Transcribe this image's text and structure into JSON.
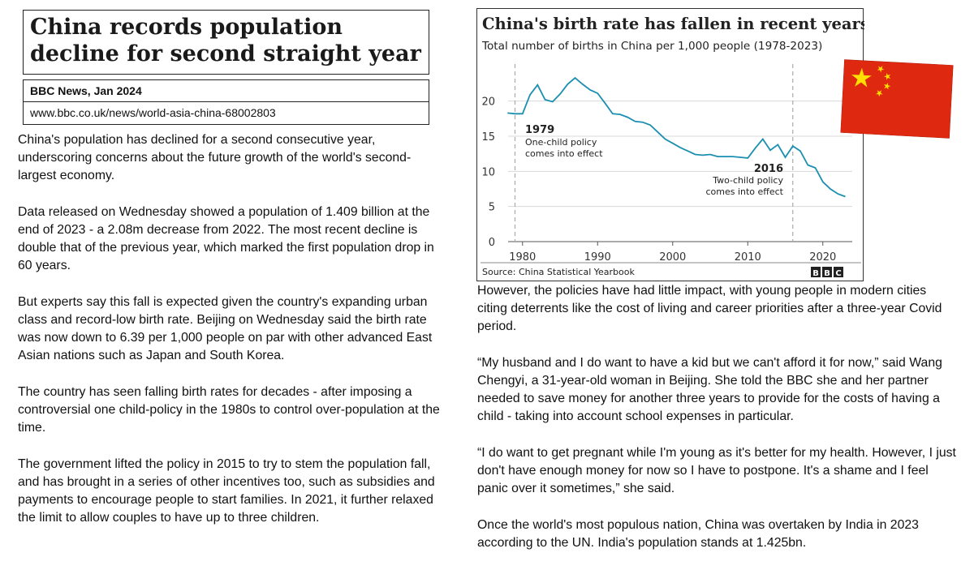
{
  "article": {
    "headline": "China records population decline for second straight year",
    "source": "BBC News, Jan 2024",
    "url": "www.bbc.co.uk/news/world-asia-china-68002803",
    "left_paragraphs": [
      "China's population has declined for a second consecutive year, underscoring concerns about the future growth of the world's second-largest economy.",
      "Data released on Wednesday showed a population of 1.409 billion at the end of 2023 - a 2.08m decrease from 2022. The most recent decline is double that of the previous year, which marked the first population drop in 60 years.",
      "But experts say this fall is expected given the country's expanding urban class and record-low birth rate. Beijing on Wednesday said the birth rate was now down to 6.39 per 1,000 people on par with other advanced East Asian nations such as Japan and South Korea.",
      "The country has seen falling birth rates for decades - after imposing a controversial one child-policy in the 1980s to control over-population at the time.",
      "The government lifted the policy in 2015 to try to stem the population fall, and has brought in a series of other incentives too, such as subsidies and payments to encourage people to start families. In 2021, it further relaxed the limit to allow couples to have up to three children."
    ],
    "right_paragraphs": [
      "However, the policies have had little impact, with young people in modern cities citing deterrents like the cost of living and career priorities after a three-year Covid period.",
      "“My husband and I do want to have a kid but we can't afford it for now,” said Wang Chengyi, a 31-year-old woman in Beijing. She told the BBC she and her partner needed to save money for another three years to provide for the costs of having a child - taking into account school expenses in particular.",
      "“I do want to get pregnant while I'm young as it's better for my health. However, I just don't have enough money for now so I have to postpone. It's a shame and I feel panic over it sometimes,” she said.",
      "Once the world's most populous nation, China was overtaken by India in 2023 according to the UN. India's population stands at 1.425bn."
    ]
  },
  "chart_data": {
    "type": "line",
    "title": "China's birth rate has fallen in recent years",
    "subtitle": "Total number of births in China per 1,000 people (1978-2023)",
    "source": "Source: China Statistical Yearbook",
    "logo": "BBC",
    "xlim": [
      1977,
      2025
    ],
    "ylim": [
      0,
      24
    ],
    "x_ticks": [
      1980,
      1990,
      2000,
      2010,
      2020
    ],
    "y_ticks": [
      0,
      5,
      10,
      15,
      20
    ],
    "grid": "horizontal",
    "line_color": "#1b8fb0",
    "series": [
      {
        "x": [
          1978,
          1979,
          1980,
          1981,
          1982,
          1983,
          1984,
          1985,
          1986,
          1987,
          1988,
          1989,
          1990,
          1991,
          1992,
          1993,
          1994,
          1995,
          1996,
          1997,
          1998,
          1999,
          2000,
          2001,
          2002,
          2003,
          2004,
          2005,
          2006,
          2007,
          2008,
          2009,
          2010,
          2011,
          2012,
          2013,
          2014,
          2015,
          2016,
          2017,
          2018,
          2019,
          2020,
          2021,
          2022,
          2023
        ],
        "values": [
          18.3,
          18.2,
          18.2,
          20.9,
          22.3,
          20.2,
          19.9,
          21.0,
          22.4,
          23.3,
          22.4,
          21.6,
          21.1,
          19.7,
          18.2,
          18.1,
          17.7,
          17.1,
          17.0,
          16.6,
          15.6,
          14.6,
          14.0,
          13.4,
          12.9,
          12.4,
          12.3,
          12.4,
          12.1,
          12.1,
          12.1,
          12.0,
          11.9,
          13.3,
          14.6,
          13.0,
          13.8,
          12.0,
          13.6,
          12.9,
          10.9,
          10.5,
          8.5,
          7.5,
          6.8,
          6.4
        ]
      }
    ],
    "annotations": [
      {
        "x": 1979,
        "year": "1979",
        "text_line1": "One-child policy",
        "text_line2": "comes into effect"
      },
      {
        "x": 2016,
        "year": "2016",
        "text_line1": "Two-child policy",
        "text_line2": "comes into effect"
      }
    ]
  },
  "flag": {
    "name": "china-flag",
    "red": "#de2910",
    "yellow": "#ffde00"
  }
}
